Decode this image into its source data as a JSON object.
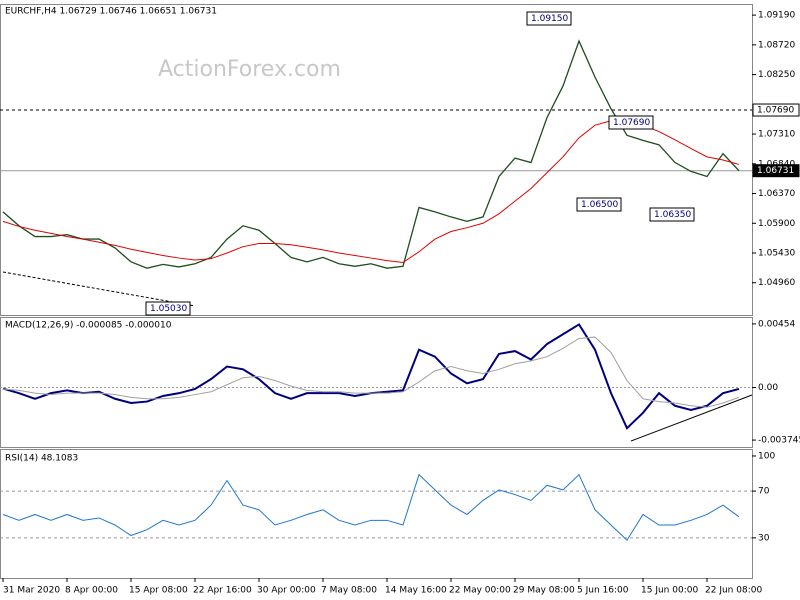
{
  "chart_data": [
    {
      "type": "line",
      "title": "EURCHF,H4  1.06729 1.06746 1.06651 1.06731",
      "watermark": "ActionForex.com",
      "ylim": [
        1.0445,
        1.0935
      ],
      "yticks": [
        {
          "value": 1.0919,
          "label": "1.09190"
        },
        {
          "value": 1.0872,
          "label": "1.08720"
        },
        {
          "value": 1.0825,
          "label": "1.08250"
        },
        {
          "value": 1.0731,
          "label": "1.07310"
        },
        {
          "value": 1.0684,
          "label": "1.06840"
        },
        {
          "value": 1.0637,
          "label": "1.06370"
        },
        {
          "value": 1.059,
          "label": "1.05900"
        },
        {
          "value": 1.0543,
          "label": "1.05430"
        },
        {
          "value": 1.0496,
          "label": "1.04960"
        }
      ],
      "hlines": [
        {
          "value": 1.0769,
          "label": "1.07690",
          "style": "dashed"
        },
        {
          "value": 1.06731,
          "label": "1.06731",
          "style": "solid"
        }
      ],
      "annotations": [
        "1.09150",
        "1.07690",
        "1.06500",
        "1.06350",
        "1.05030"
      ],
      "series": [
        {
          "color": "#1e4d1e",
          "values": [
            1.0608,
            1.0586,
            1.0569,
            1.0569,
            1.0572,
            1.0565,
            1.0565,
            1.0551,
            1.0529,
            1.0519,
            1.0525,
            1.0521,
            1.0526,
            1.0536,
            1.0565,
            1.0586,
            1.0579,
            1.0558,
            1.0536,
            1.0529,
            1.0536,
            1.0526,
            1.0522,
            1.0526,
            1.0519,
            1.0522,
            1.0615,
            1.0608,
            1.06,
            1.0593,
            1.06,
            1.0664,
            1.0693,
            1.0686,
            1.0757,
            1.0807,
            1.0878,
            1.0821,
            1.0771,
            1.0729,
            1.0721,
            1.0714,
            1.0686,
            1.0672,
            1.0664,
            1.07,
            1.0673
          ]
        },
        {
          "color": "#e00000",
          "values": [
            1.0593,
            1.0585,
            1.0579,
            1.0574,
            1.0569,
            1.0565,
            1.056,
            1.0555,
            1.0549,
            1.0544,
            1.0539,
            1.0535,
            1.0532,
            1.0534,
            1.0543,
            1.0553,
            1.0558,
            1.0558,
            1.0556,
            1.0552,
            1.0548,
            1.0543,
            1.0539,
            1.0535,
            1.0531,
            1.0528,
            1.0545,
            1.0565,
            1.0577,
            1.0583,
            1.059,
            1.0605,
            1.0625,
            1.0645,
            1.067,
            1.0695,
            1.0725,
            1.0745,
            1.0752,
            1.0752,
            1.0745,
            1.0735,
            1.0722,
            1.0708,
            1.0695,
            1.069,
            1.0683
          ]
        }
      ]
    },
    {
      "type": "line",
      "title": "MACD(12,26,9) -0.000085 -0.000010",
      "ylim": [
        -0.00424,
        0.00496
      ],
      "yticks": [
        0.00454,
        {
          "value": 0,
          "label": "0.00"
        },
        -0.003745
      ],
      "series": [
        {
          "color": "#00007f",
          "values": [
            -7e-05,
            -0.0004,
            -0.0008,
            -0.0004,
            -0.0002,
            -0.0004,
            -0.0003,
            -0.0008,
            -0.0011,
            -0.001,
            -0.0006,
            -0.0004,
            -0.0001,
            0.0006,
            0.0015,
            0.0013,
            0.0006,
            -0.0004,
            -0.0008,
            -0.0004,
            -0.0004,
            -0.0004,
            -0.0006,
            -0.0004,
            -0.0003,
            -0.0002,
            0.0027,
            0.0022,
            0.001,
            0.0003,
            0.0006,
            0.0024,
            0.0026,
            0.002,
            0.0031,
            0.0038,
            0.0045,
            0.0027,
            -0.0004,
            -0.0029,
            -0.0018,
            -0.0004,
            -0.0013,
            -0.0016,
            -0.0013,
            -0.0004,
            -0.0001
          ]
        },
        {
          "color": "#a0a0a0",
          "values": [
            -0.0001,
            -0.0002,
            -0.0004,
            -0.0005,
            -0.0004,
            -0.0004,
            -0.0004,
            -0.0005,
            -0.0007,
            -0.0008,
            -0.0008,
            -0.0007,
            -0.0005,
            -0.0003,
            0.0002,
            0.0007,
            0.0008,
            0.0005,
            0.0001,
            -0.0002,
            -0.0003,
            -0.0003,
            -0.0004,
            -0.0004,
            -0.0004,
            -0.0003,
            0.0004,
            0.0012,
            0.0015,
            0.0012,
            0.001,
            0.0013,
            0.0017,
            0.0019,
            0.0022,
            0.0028,
            0.0035,
            0.0036,
            0.0025,
            0.0005,
            -0.0008,
            -0.001,
            -0.0011,
            -0.0013,
            -0.0014,
            -0.0011,
            -0.0007
          ]
        }
      ]
    },
    {
      "type": "line",
      "title": "RSI(14) 48.1083",
      "ylim": [
        -4.3,
        105.1
      ],
      "yticks": [
        100,
        70,
        30
      ],
      "levels": [
        70,
        30
      ],
      "categories": [
        "31 Mar 2020",
        null,
        null,
        null,
        "8 Apr 00:00",
        null,
        null,
        null,
        "15 Apr 08:00",
        null,
        null,
        null,
        "22 Apr 16:00",
        null,
        null,
        null,
        "30 Apr 00:00",
        null,
        null,
        null,
        "7 May 08:00",
        null,
        null,
        null,
        "14 May 16:00",
        null,
        null,
        null,
        "22 May 00:00",
        null,
        null,
        null,
        "29 May 08:00",
        null,
        null,
        null,
        "5 Jun 16:00",
        null,
        null,
        null,
        "15 Jun 00:00",
        null,
        null,
        null,
        "22 Jun 08:00",
        null,
        null
      ],
      "series": [
        {
          "color": "#1f77d0",
          "values": [
            50,
            45,
            50,
            45,
            50,
            45,
            47,
            41,
            32,
            37,
            45,
            41,
            45,
            58,
            79,
            58,
            54,
            41,
            45,
            50,
            54,
            45,
            41,
            45,
            45,
            41,
            84,
            71,
            58,
            50,
            62,
            71,
            67,
            62,
            75,
            71,
            84,
            54,
            41,
            28,
            50,
            41,
            41,
            45,
            50,
            58,
            48
          ]
        }
      ]
    }
  ]
}
